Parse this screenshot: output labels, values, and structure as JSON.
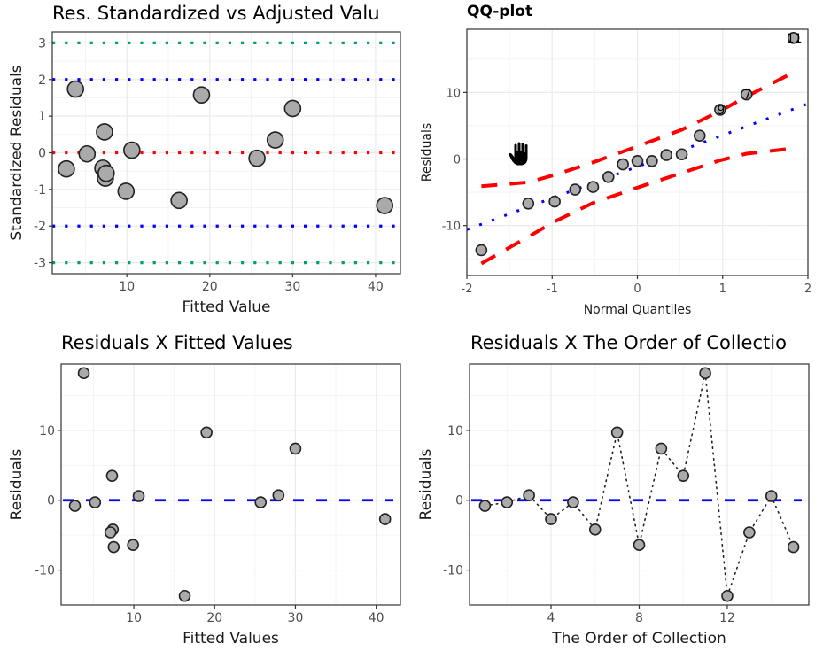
{
  "chart_data": [
    {
      "id": "std",
      "type": "scatter",
      "title": "Res. Standardized vs Adjusted Valu",
      "xlabel": "Fitted Value",
      "ylabel": "Standardized Residuals",
      "xlim": [
        1,
        43
      ],
      "ylim": [
        -3.3,
        3.3
      ],
      "xticks": [
        10,
        20,
        30,
        40
      ],
      "yticks": [
        -3,
        -2,
        -1,
        0,
        1,
        2,
        3
      ],
      "reference_lines": [
        {
          "y": 3,
          "color": "#009E73",
          "style": "dotted"
        },
        {
          "y": 2,
          "color": "#0000FF",
          "style": "dotted"
        },
        {
          "y": 0,
          "color": "#FF0000",
          "style": "dotted"
        },
        {
          "y": -2,
          "color": "#0000FF",
          "style": "dotted"
        },
        {
          "y": -3,
          "color": "#009E73",
          "style": "dotted"
        }
      ],
      "points": [
        {
          "x": 2.7,
          "y": -0.44
        },
        {
          "x": 5.2,
          "y": -0.03
        },
        {
          "x": 7.3,
          "y": 0.57
        },
        {
          "x": 3.8,
          "y": 1.74
        },
        {
          "x": 10.6,
          "y": 0.07
        },
        {
          "x": 7.4,
          "y": -0.69
        },
        {
          "x": 7.1,
          "y": -0.42
        },
        {
          "x": 7.5,
          "y": -0.56
        },
        {
          "x": 9.9,
          "y": -1.05
        },
        {
          "x": 19.0,
          "y": 1.58
        },
        {
          "x": 30.0,
          "y": 1.21
        },
        {
          "x": 25.7,
          "y": -0.15
        },
        {
          "x": 27.9,
          "y": 0.35
        },
        {
          "x": 41.1,
          "y": -1.44
        },
        {
          "x": 16.3,
          "y": -1.3
        }
      ],
      "point_fill": "#AAAAAA"
    },
    {
      "id": "qq",
      "type": "scatter",
      "title": "QQ-plot",
      "xlabel": "Normal Quantiles",
      "ylabel": "Residuals",
      "xlim": [
        -2,
        2
      ],
      "ylim": [
        -17.5,
        19.5
      ],
      "xticks": [
        -2,
        -1,
        0,
        1,
        2
      ],
      "yticks": [
        -10,
        0,
        10
      ],
      "points": [
        {
          "x": -1.83,
          "y": -13.7
        },
        {
          "x": -1.28,
          "y": -6.7
        },
        {
          "x": -0.97,
          "y": -6.4
        },
        {
          "x": -0.73,
          "y": -4.6
        },
        {
          "x": -0.52,
          "y": -4.2
        },
        {
          "x": -0.34,
          "y": -2.7
        },
        {
          "x": -0.17,
          "y": -0.8
        },
        {
          "x": 0.0,
          "y": -0.3
        },
        {
          "x": 0.17,
          "y": -0.3
        },
        {
          "x": 0.34,
          "y": 0.6
        },
        {
          "x": 0.52,
          "y": 0.7
        },
        {
          "x": 0.73,
          "y": 3.5
        },
        {
          "x": 0.97,
          "y": 7.4,
          "label": "9"
        },
        {
          "x": 1.28,
          "y": 9.7,
          "label": "7"
        },
        {
          "x": 1.83,
          "y": 18.2,
          "label": "11"
        }
      ],
      "qq_line": {
        "intercept": -1.15,
        "slope": 4.73,
        "color": "#0000FF",
        "style": "dotted"
      },
      "band_upper": [
        [
          -1.83,
          -4.1
        ],
        [
          -1.28,
          -3.5
        ],
        [
          -0.97,
          -2.4
        ],
        [
          -0.52,
          -0.5
        ],
        [
          0.0,
          1.9
        ],
        [
          0.52,
          4.4
        ],
        [
          0.97,
          7.2
        ],
        [
          1.28,
          9.4
        ],
        [
          1.83,
          13.0
        ]
      ],
      "band_lower": [
        [
          -1.83,
          -15.7
        ],
        [
          -1.28,
          -11.7
        ],
        [
          -0.97,
          -9.4
        ],
        [
          -0.52,
          -6.6
        ],
        [
          0.0,
          -4.3
        ],
        [
          0.52,
          -2.1
        ],
        [
          0.97,
          -0.2
        ],
        [
          1.28,
          0.8
        ],
        [
          1.83,
          1.6
        ]
      ],
      "band_color": "#FF0000",
      "point_fill": "#AAAAAA"
    },
    {
      "id": "rf",
      "type": "scatter",
      "title": "Residuals X Fitted Values",
      "xlabel": "Fitted Values",
      "ylabel": "Residuals",
      "xlim": [
        1,
        43
      ],
      "ylim": [
        -15,
        19.5
      ],
      "xticks": [
        10,
        20,
        30,
        40
      ],
      "yticks": [
        -10,
        0,
        10
      ],
      "reference_line": {
        "y": 0,
        "color": "#0000FF",
        "style": "dashed"
      },
      "points": [
        {
          "x": 2.7,
          "y": -0.8
        },
        {
          "x": 5.2,
          "y": -0.3
        },
        {
          "x": 27.9,
          "y": 0.7
        },
        {
          "x": 41.1,
          "y": -2.7
        },
        {
          "x": 25.7,
          "y": -0.3
        },
        {
          "x": 7.4,
          "y": -4.2
        },
        {
          "x": 19.0,
          "y": 9.7
        },
        {
          "x": 9.9,
          "y": -6.4
        },
        {
          "x": 30.0,
          "y": 7.4
        },
        {
          "x": 7.3,
          "y": 3.5
        },
        {
          "x": 3.8,
          "y": 18.2
        },
        {
          "x": 16.3,
          "y": -13.7
        },
        {
          "x": 7.1,
          "y": -4.6
        },
        {
          "x": 10.6,
          "y": 0.6
        },
        {
          "x": 7.5,
          "y": -6.7
        }
      ],
      "point_fill": "#AAAAAA"
    },
    {
      "id": "ro",
      "type": "line",
      "title": "Residuals X The Order of Collectio",
      "xlabel": "The Order of Collection",
      "ylabel": "Residuals",
      "xlim": [
        0.3,
        15.7
      ],
      "ylim": [
        -15,
        19.5
      ],
      "xticks": [
        4,
        8,
        12
      ],
      "yticks": [
        -10,
        0,
        10
      ],
      "reference_line": {
        "y": 0,
        "color": "#0000FF",
        "style": "dashed"
      },
      "x": [
        1,
        2,
        3,
        4,
        5,
        6,
        7,
        8,
        9,
        10,
        11,
        12,
        13,
        14,
        15
      ],
      "values": [
        -0.8,
        -0.3,
        0.7,
        -2.7,
        -0.3,
        -4.2,
        9.7,
        -6.4,
        7.4,
        3.5,
        18.2,
        -13.7,
        -4.6,
        0.6,
        -6.7
      ],
      "line_style": "dotted",
      "point_fill": "#AAAAAA"
    }
  ],
  "cursor": {
    "icon": "hand-cursor-icon"
  }
}
